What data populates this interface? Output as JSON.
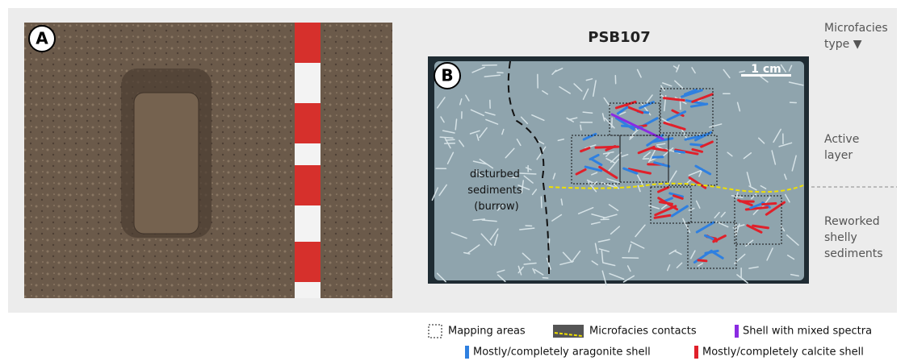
{
  "panel_a": {
    "label": "A"
  },
  "panel_b": {
    "label": "B",
    "title": "PSB107",
    "scale_bar": "1 cm",
    "burrow_label": {
      "lines": [
        "disturbed",
        "sediments",
        "(burrow)"
      ]
    }
  },
  "side_labels": {
    "header": {
      "lines": [
        "Microfacies",
        "type ▼"
      ]
    },
    "active": {
      "lines": [
        "Active",
        "layer"
      ]
    },
    "reworked": {
      "lines": [
        "Reworked",
        "shelly",
        "sediments"
      ]
    }
  },
  "legend": {
    "items": [
      "Mapping areas",
      "Microfacies contacts",
      "Shell with mixed spectra",
      "Mostly/completely aragonite shell",
      "Mostly/completely calcite shell"
    ]
  }
}
